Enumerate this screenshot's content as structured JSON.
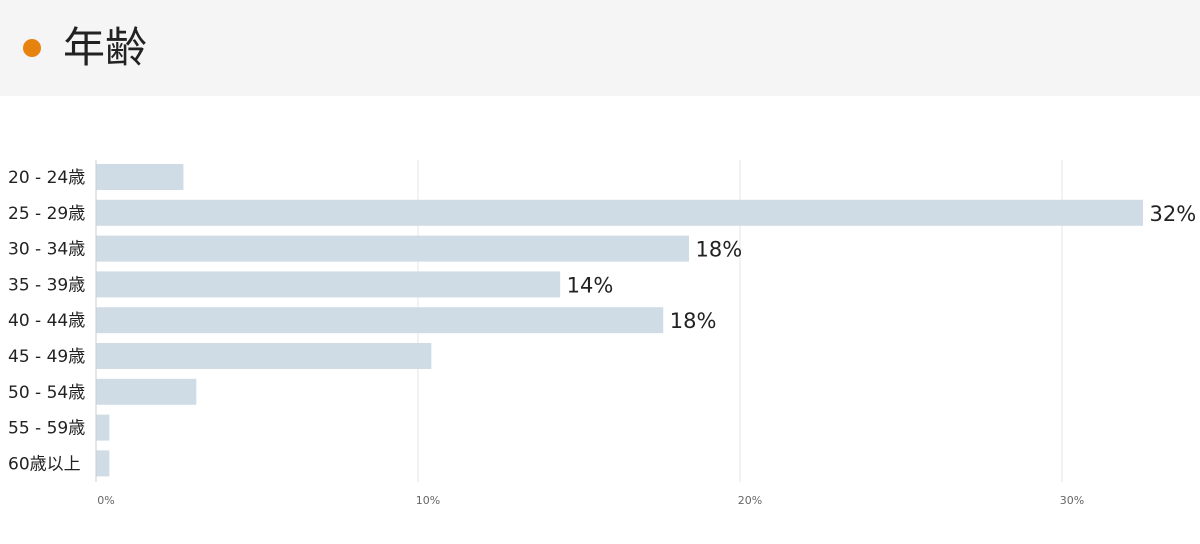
{
  "header": {
    "title": "年齢"
  },
  "colors": {
    "accent_dot": "#e8820f",
    "bar": "#cfdce5",
    "gridline": "#e6e6e6",
    "axis": "#cccccc"
  },
  "chart_data": {
    "type": "bar",
    "orientation": "horizontal",
    "title": "",
    "xlabel": "",
    "ylabel": "",
    "categories": [
      "20 - 24歳",
      "25 - 29歳",
      "30 - 34歳",
      "35 - 39歳",
      "40 - 44歳",
      "45 - 49歳",
      "50 - 54歳",
      "55 - 59歳",
      "60歳以上"
    ],
    "values": [
      2.7,
      32.5,
      18.4,
      14.4,
      17.6,
      10.4,
      3.1,
      0.4,
      0.4
    ],
    "data_labels": [
      "",
      "32%",
      "18%",
      "14%",
      "18%",
      "",
      "",
      "",
      ""
    ],
    "xlim": [
      0,
      34
    ],
    "x_ticks": [
      0,
      10,
      20,
      30
    ],
    "x_tick_labels": [
      "0%",
      "10%",
      "20%",
      "30%"
    ],
    "grid": true,
    "legend": "none"
  }
}
